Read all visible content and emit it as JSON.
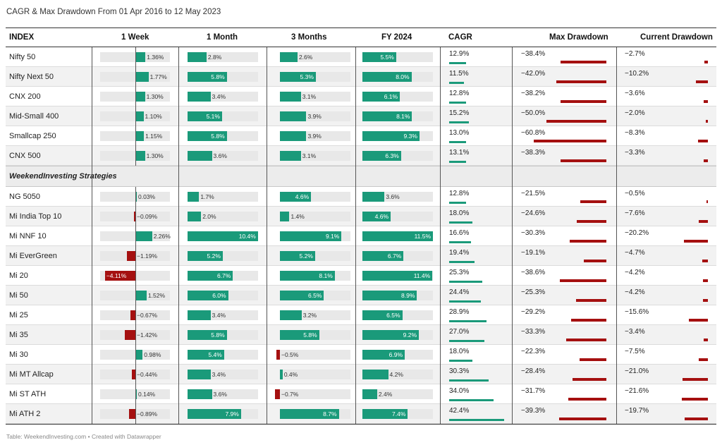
{
  "title": "CAGR & Max Drawdown From 01 Apr 2016 to 12 May 2023",
  "footer": "Table: WeekendInvesting.com • Created with Datawrapper",
  "colors": {
    "positive": "#1a9a7a",
    "negative": "#a51010",
    "track": "#e8e8e8"
  },
  "headers": [
    "INDEX",
    "1 Week",
    "1 Month",
    "3 Months",
    "FY 2024",
    "CAGR",
    "Max Drawdown",
    "Current Drawdown"
  ],
  "section_label": "WeekendInvesting Strategies",
  "chart_data": {
    "type": "table",
    "groups": [
      {
        "name": "",
        "rows": [
          {
            "name": "Nifty 50",
            "week": "1.36%",
            "month": "2.8%",
            "m3": "2.6%",
            "fy": "5.5%",
            "cagr": "12.9%",
            "maxdd": "−38.4%",
            "curdd": "−2.7%"
          },
          {
            "name": "Nifty Next 50",
            "week": "1.77%",
            "month": "5.8%",
            "m3": "5.3%",
            "fy": "8.0%",
            "cagr": "11.5%",
            "maxdd": "−42.0%",
            "curdd": "−10.2%"
          },
          {
            "name": "CNX 200",
            "week": "1.30%",
            "month": "3.4%",
            "m3": "3.1%",
            "fy": "6.1%",
            "cagr": "12.8%",
            "maxdd": "−38.2%",
            "curdd": "−3.6%"
          },
          {
            "name": "Mid-Small 400",
            "week": "1.10%",
            "month": "5.1%",
            "m3": "3.9%",
            "fy": "8.1%",
            "cagr": "15.2%",
            "maxdd": "−50.0%",
            "curdd": "−2.0%"
          },
          {
            "name": "Smallcap 250",
            "week": "1.15%",
            "month": "5.8%",
            "m3": "3.9%",
            "fy": "9.3%",
            "cagr": "13.0%",
            "maxdd": "−60.8%",
            "curdd": "−8.3%"
          },
          {
            "name": "CNX 500",
            "week": "1.30%",
            "month": "3.6%",
            "m3": "3.1%",
            "fy": "6.3%",
            "cagr": "13.1%",
            "maxdd": "−38.3%",
            "curdd": "−3.3%"
          }
        ]
      },
      {
        "name": "WeekendInvesting Strategies",
        "rows": [
          {
            "name": "NG 5050",
            "week": "0.03%",
            "month": "1.7%",
            "m3": "4.6%",
            "fy": "3.6%",
            "cagr": "12.8%",
            "maxdd": "−21.5%",
            "curdd": "−0.5%"
          },
          {
            "name": "Mi India Top 10",
            "week": "−0.09%",
            "month": "2.0%",
            "m3": "1.4%",
            "fy": "4.6%",
            "cagr": "18.0%",
            "maxdd": "−24.6%",
            "curdd": "−7.6%"
          },
          {
            "name": "Mi NNF 10",
            "week": "2.26%",
            "month": "10.4%",
            "m3": "9.1%",
            "fy": "11.5%",
            "cagr": "16.6%",
            "maxdd": "−30.3%",
            "curdd": "−20.2%"
          },
          {
            "name": "Mi EverGreen",
            "week": "−1.19%",
            "month": "5.2%",
            "m3": "5.2%",
            "fy": "6.7%",
            "cagr": "19.4%",
            "maxdd": "−19.1%",
            "curdd": "−4.7%"
          },
          {
            "name": "Mi 20",
            "week": "−4.11%",
            "month": "6.7%",
            "m3": "8.1%",
            "fy": "11.4%",
            "cagr": "25.3%",
            "maxdd": "−38.6%",
            "curdd": "−4.2%"
          },
          {
            "name": "Mi 50",
            "week": "1.52%",
            "month": "6.0%",
            "m3": "6.5%",
            "fy": "8.9%",
            "cagr": "24.4%",
            "maxdd": "−25.3%",
            "curdd": "−4.2%"
          },
          {
            "name": "Mi 25",
            "week": "−0.67%",
            "month": "3.4%",
            "m3": "3.2%",
            "fy": "6.5%",
            "cagr": "28.9%",
            "maxdd": "−29.2%",
            "curdd": "−15.6%"
          },
          {
            "name": "Mi 35",
            "week": "−1.42%",
            "month": "5.8%",
            "m3": "5.8%",
            "fy": "9.2%",
            "cagr": "27.0%",
            "maxdd": "−33.3%",
            "curdd": "−3.4%"
          },
          {
            "name": "Mi 30",
            "week": "0.98%",
            "month": "5.4%",
            "m3": "−0.5%",
            "fy": "6.9%",
            "cagr": "18.0%",
            "maxdd": "−22.3%",
            "curdd": "−7.5%"
          },
          {
            "name": "Mi MT Allcap",
            "week": "−0.44%",
            "month": "3.4%",
            "m3": "0.4%",
            "fy": "4.2%",
            "cagr": "30.3%",
            "maxdd": "−28.4%",
            "curdd": "−21.0%"
          },
          {
            "name": "Mi ST ATH",
            "week": "0.14%",
            "month": "3.6%",
            "m3": "−0.7%",
            "fy": "2.4%",
            "cagr": "34.0%",
            "maxdd": "−31.7%",
            "curdd": "−21.6%"
          },
          {
            "name": "Mi ATH 2",
            "week": "−0.89%",
            "month": "7.9%",
            "m3": "8.7%",
            "fy": "7.4%",
            "cagr": "42.4%",
            "maxdd": "−39.3%",
            "curdd": "−19.7%"
          }
        ]
      }
    ]
  }
}
